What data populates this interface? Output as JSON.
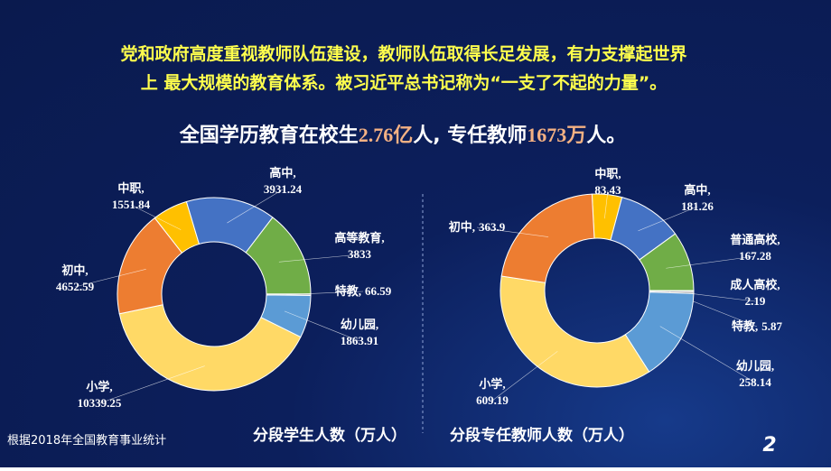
{
  "header": {
    "lines": [
      "党和政府高度重视教师队伍建设，教师队伍取得长足发展，有力支撑起世界",
      "上 最大规模的教育体系。被习近平总书记称为“一支了不起的力量”。"
    ]
  },
  "headline": {
    "parts": [
      "全国学历教育在校生",
      "2.76亿",
      "人, 专任教师",
      "1673万",
      "人。"
    ]
  },
  "chart_data": [
    {
      "type": "pie",
      "title": "分段学生人数（万人）",
      "donut": true,
      "categories": [
        "中职,",
        "高中,",
        "高等教育,",
        "特教,",
        "幼儿园,",
        "小学,",
        "初中,"
      ],
      "values": [
        1551.84,
        3931.24,
        3833,
        66.59,
        1863.91,
        10339.25,
        4652.59
      ],
      "colors": [
        "#ffc000",
        "#4472c4",
        "#70ad47",
        "#a5a5a5",
        "#5b9bd5",
        "#ffd966",
        "#ed7d31"
      ]
    },
    {
      "type": "pie",
      "title": "分段专任教师人数（万人）",
      "donut": true,
      "categories": [
        "中职,",
        "高中,",
        "普通高校,",
        "成人高校,",
        "特教,",
        "幼儿园,",
        "小学,",
        "初中,"
      ],
      "values": [
        83.43,
        181.26,
        167.28,
        2.19,
        5.87,
        258.14,
        609.19,
        363.9
      ],
      "colors": [
        "#ffc000",
        "#4472c4",
        "#70ad47",
        "#264478",
        "#a5a5a5",
        "#5b9bd5",
        "#ffd966",
        "#ed7d31"
      ]
    }
  ],
  "footer": {
    "note": "根据2018年全国教育事业统计",
    "page": "2"
  }
}
